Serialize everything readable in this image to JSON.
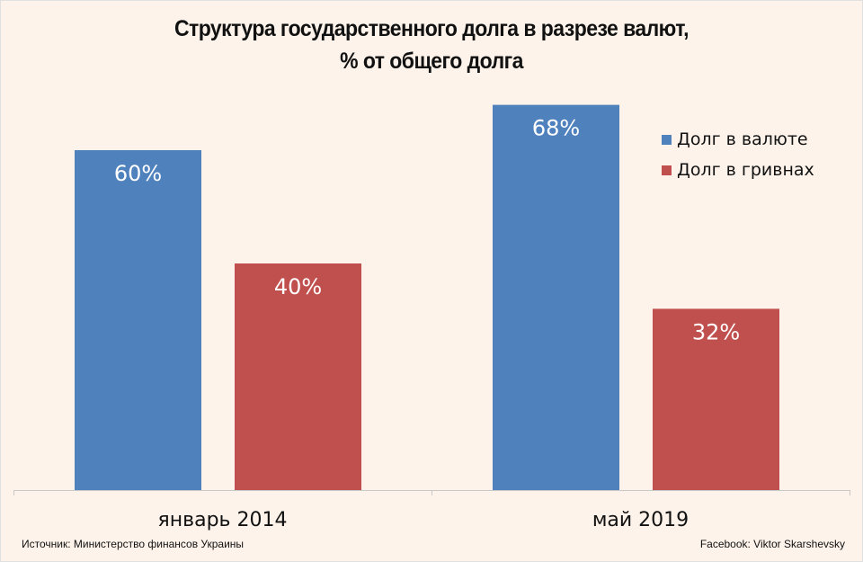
{
  "chart_data": {
    "type": "bar",
    "title_lines": [
      "Структура государственного долга в разрезе валют,",
      "% от общего долга"
    ],
    "categories": [
      "январь 2014",
      "май 2019"
    ],
    "series": [
      {
        "name": "Долг в валюте",
        "color": "#4f81bd",
        "values": [
          60,
          68
        ],
        "labels": [
          "60%",
          "68%"
        ]
      },
      {
        "name": "Долг в гривнах",
        "color": "#c0504d",
        "values": [
          40,
          32
        ],
        "labels": [
          "40%",
          "32%"
        ]
      }
    ],
    "ylim": [
      0,
      100
    ],
    "unit": "%",
    "grid": false,
    "y_axis_visible": false,
    "legend_position": "top-right",
    "xlabel": "",
    "ylabel": ""
  },
  "footer": {
    "source": "Источник: Министерство финансов Украины",
    "credit": "Facebook: Viktor Skarshevsky"
  }
}
